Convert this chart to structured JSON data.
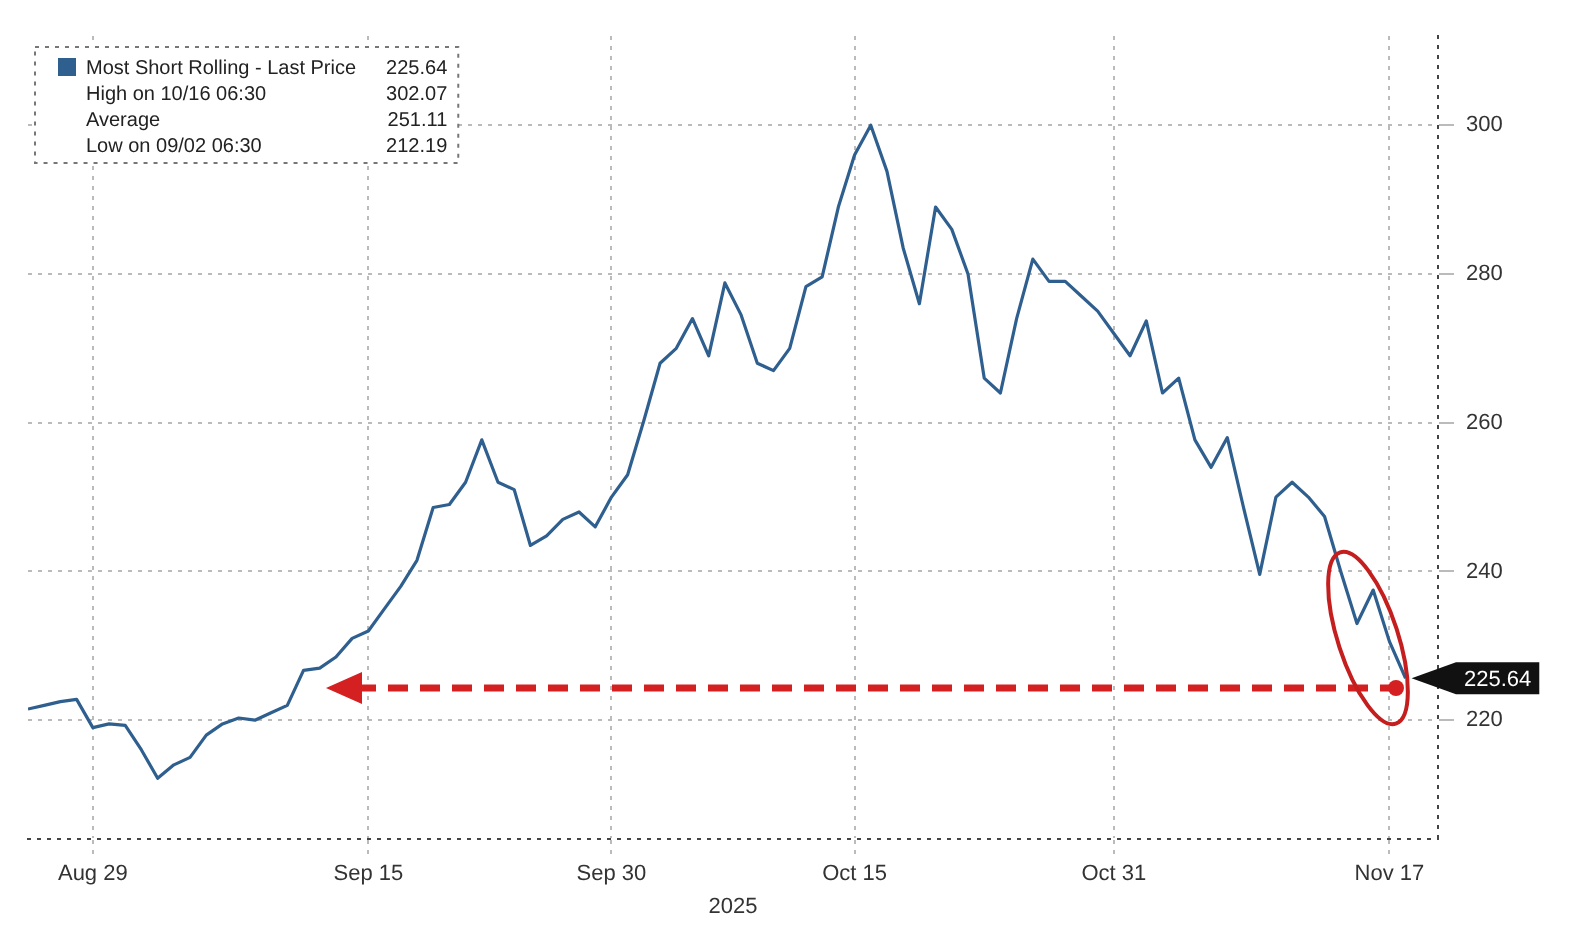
{
  "chart_data": {
    "type": "line",
    "xlabel": "2025",
    "x": [
      "2025-08-25",
      "2025-08-26",
      "2025-08-27",
      "2025-08-28",
      "2025-08-29",
      "2025-08-30",
      "2025-08-31",
      "2025-09-01",
      "2025-09-02",
      "2025-09-03",
      "2025-09-04",
      "2025-09-05",
      "2025-09-06",
      "2025-09-07",
      "2025-09-08",
      "2025-09-09",
      "2025-09-10",
      "2025-09-11",
      "2025-09-12",
      "2025-09-13",
      "2025-09-14",
      "2025-09-15",
      "2025-09-16",
      "2025-09-17",
      "2025-09-18",
      "2025-09-19",
      "2025-09-20",
      "2025-09-21",
      "2025-09-22",
      "2025-09-23",
      "2025-09-24",
      "2025-09-25",
      "2025-09-26",
      "2025-09-27",
      "2025-09-28",
      "2025-09-29",
      "2025-09-30",
      "2025-10-01",
      "2025-10-02",
      "2025-10-03",
      "2025-10-04",
      "2025-10-05",
      "2025-10-06",
      "2025-10-07",
      "2025-10-08",
      "2025-10-09",
      "2025-10-10",
      "2025-10-11",
      "2025-10-12",
      "2025-10-13",
      "2025-10-14",
      "2025-10-15",
      "2025-10-16",
      "2025-10-17",
      "2025-10-18",
      "2025-10-19",
      "2025-10-20",
      "2025-10-21",
      "2025-10-22",
      "2025-10-23",
      "2025-10-24",
      "2025-10-25",
      "2025-10-26",
      "2025-10-27",
      "2025-10-28",
      "2025-10-29",
      "2025-10-30",
      "2025-10-31",
      "2025-11-01",
      "2025-11-02",
      "2025-11-03",
      "2025-11-04",
      "2025-11-05",
      "2025-11-06",
      "2025-11-07",
      "2025-11-08",
      "2025-11-09",
      "2025-11-10",
      "2025-11-11",
      "2025-11-12",
      "2025-11-13",
      "2025-11-14",
      "2025-11-15",
      "2025-11-16",
      "2025-11-17",
      "2025-11-18"
    ],
    "series": [
      {
        "name": "Most Short Rolling - Last Price",
        "color": "#2f5f8f",
        "values": [
          221.5,
          222,
          222.5,
          222.8,
          219,
          219.5,
          219.3,
          216,
          212.19,
          214,
          215,
          218,
          219.5,
          220.3,
          220,
          221,
          222,
          226.7,
          227,
          228.5,
          231,
          232,
          235,
          238,
          241.5,
          248.6,
          249,
          252,
          257.7,
          252,
          251,
          243.5,
          244.8,
          247,
          248,
          246,
          250,
          253,
          260.3,
          268,
          270,
          274,
          269,
          278.8,
          274.5,
          268,
          267,
          270,
          278.3,
          279.6,
          289,
          296,
          300,
          293.8,
          283.5,
          276,
          289,
          286,
          280,
          266,
          264,
          274,
          282,
          279,
          279,
          277,
          275,
          272,
          269,
          273.7,
          264,
          266,
          257.7,
          254,
          258,
          248.6,
          239.6,
          250,
          252,
          250,
          247.4,
          240,
          233,
          237.5,
          230.6,
          225.64
        ]
      }
    ],
    "xlim": [
      "2025-08-25",
      "2025-11-20"
    ],
    "xticks": [
      {
        "value": "2025-08-29",
        "label": "Aug 29"
      },
      {
        "value": "2025-09-15",
        "label": "Sep 15"
      },
      {
        "value": "2025-09-30",
        "label": "Sep 30"
      },
      {
        "value": "2025-10-15",
        "label": "Oct 15"
      },
      {
        "value": "2025-10-31",
        "label": "Oct 31"
      },
      {
        "value": "2025-11-17",
        "label": "Nov 17"
      }
    ],
    "ylim": [
      204,
      312
    ],
    "yticks": [
      220,
      240,
      260,
      280,
      300
    ],
    "grid": true,
    "legend": "top left",
    "line_style": "solid",
    "marker": "none",
    "annotations": [
      {
        "text": "225.64",
        "x": "2025-11-18",
        "y": 225.64
      },
      "High on 10/16 06:30 302.07",
      "Average 251.11",
      "Low on 09/02 06:30 212.19"
    ]
  }
}
